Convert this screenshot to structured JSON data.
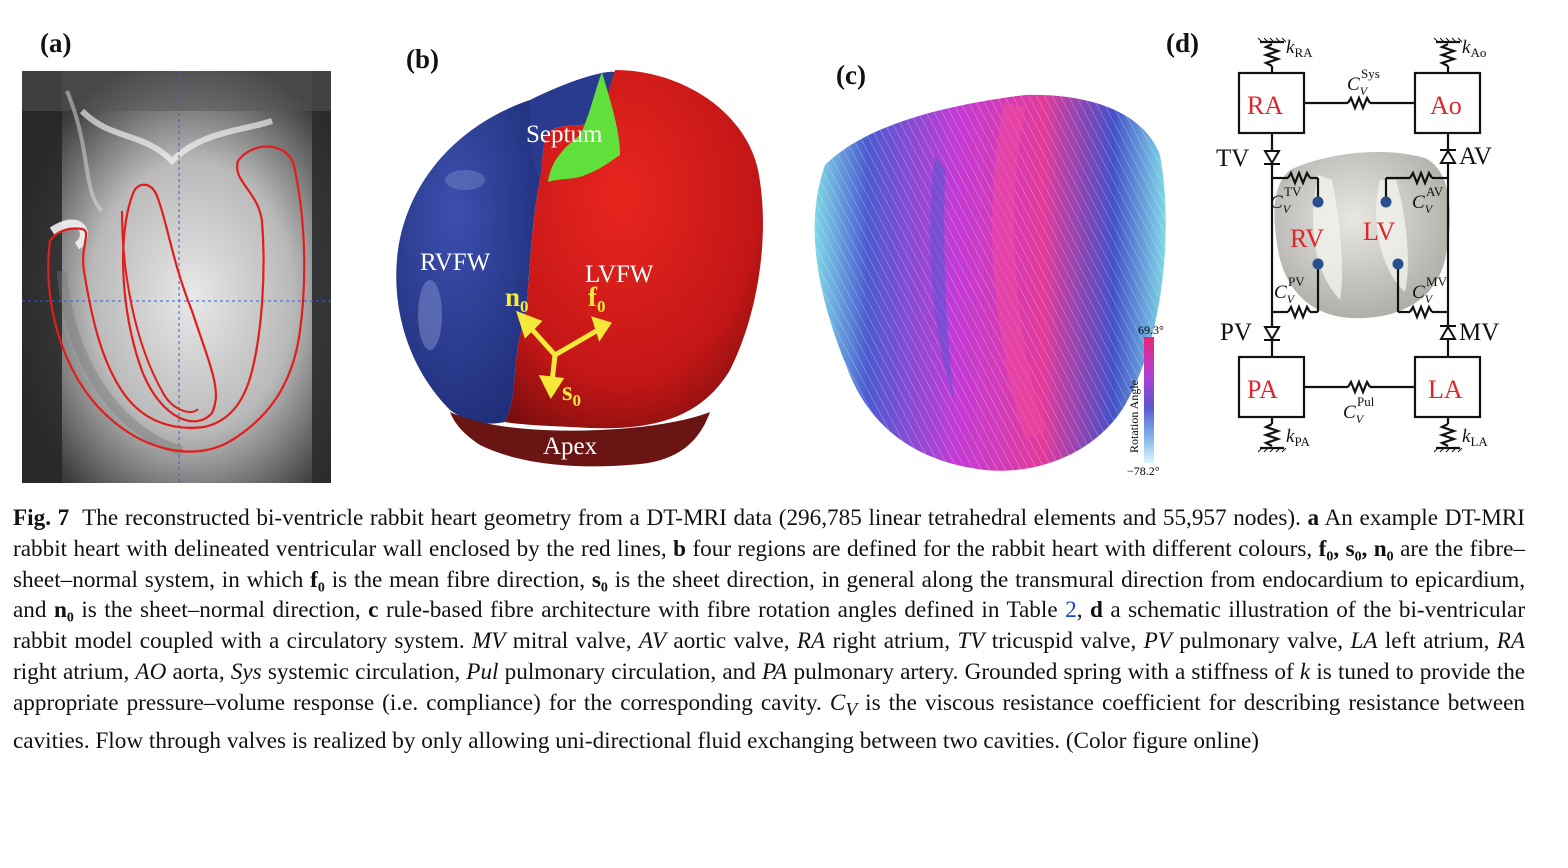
{
  "panels": {
    "a": {
      "label": "(a)"
    },
    "b": {
      "label": "(b)",
      "regions": {
        "septum": "Septum",
        "rvfw": "RVFW",
        "lvfw": "LVFW",
        "apex": "Apex"
      },
      "vectors": {
        "n": "n",
        "f": "f",
        "s": "s",
        "sub": "0"
      },
      "colors": {
        "rvfw": "#2a3a8f",
        "lvfw": "#d61c1c",
        "septum": "#5fe03a",
        "apex": "#6b1414",
        "arrows": "#f6e83a"
      }
    },
    "c": {
      "label": "(c)",
      "colorbar": {
        "title": "Rotation Angle",
        "max": "69.3°",
        "min": "−78.2°"
      }
    },
    "d": {
      "label": "(d)",
      "boxes": {
        "ra": "RA",
        "ao": "Ao",
        "pa": "PA",
        "la": "LA",
        "rv": "RV",
        "lv": "LV"
      },
      "valves": {
        "tv": "TV",
        "av": "AV",
        "pv": "PV",
        "mv": "MV"
      },
      "springs": {
        "k": "k",
        "ra": "RA",
        "ao": "Ao",
        "pa": "PA",
        "la": "LA"
      },
      "resist": {
        "c": "C",
        "v": "V",
        "sys": "Sys",
        "pul": "Pul",
        "tv": "TV",
        "av": "AV",
        "pv": "PV",
        "mv": "MV"
      }
    }
  },
  "caption": {
    "fig": "Fig. 7",
    "t1": "The reconstructed bi-ventricle rabbit heart geometry from a DT-MRI data (296,785 linear tetrahedral elements and 55,957 nodes).",
    "a": "a",
    "t2": "An example DT-MRI rabbit heart with delineated ventricular wall enclosed by the red lines,",
    "b": "b",
    "t3": "four regions are defined for the rabbit heart with different colours,",
    "vecs": "f₀, s₀, n₀",
    "t4": "are the fibre–sheet–normal system, in which",
    "f0": "f₀",
    "t5": "is the mean fibre direction,",
    "s0": "s₀",
    "t6": "is the sheet direction, in general along the transmural direction from endocardium to epicardium, and",
    "n0": "n₀",
    "t7": "is the sheet–normal direction,",
    "c": "c",
    "t8": "rule-based fibre architecture with fibre rotation angles defined in Table",
    "table": "2",
    "t9": ",",
    "d": "d",
    "t10": "a schematic illustration of the bi-ventricular rabbit model coupled with a circulatory system.",
    "mv": "MV",
    "t11": "mitral valve,",
    "av": "AV",
    "t12": "aortic valve,",
    "ra": "RA",
    "t13": "right atrium,",
    "tv": "TV",
    "t14": "tricuspid valve,",
    "pv": "PV",
    "t15": "pulmonary valve,",
    "la": "LA",
    "t16": "left atrium,",
    "ra2": "RA",
    "t17": "right atrium,",
    "ao": "AO",
    "t18": "aorta,",
    "sys": "Sys",
    "t19": "systemic circulation,",
    "pul": "Pul",
    "t20": "pulmonary circulation, and",
    "pa": "PA",
    "t21": "pulmonary artery. Grounded spring with a stiffness of",
    "k": "k",
    "t22": "is tuned to provide the appropriate pressure–volume response (i.e. compliance) for the corresponding cavity.",
    "cv": "C",
    "cvsub": "V",
    "t23": "is the viscous resistance coefficient for describing resistance between cavities. Flow through valves is realized by only allowing uni-directional fluid exchanging between two cavities. (Color figure online)"
  }
}
